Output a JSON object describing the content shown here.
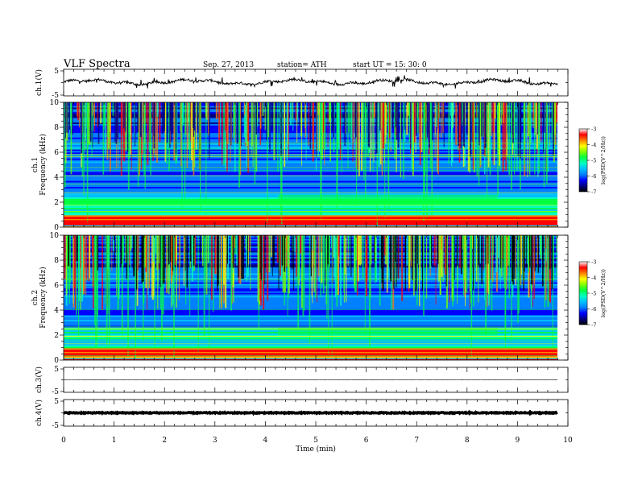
{
  "header": {
    "title": "VLF  Spectra",
    "date": "Sep. 27, 2013",
    "station": "station= ATH",
    "start": "start  UT  =   15: 30: 0"
  },
  "chart_data": [
    {
      "type": "line",
      "panel": "ch1-waveform",
      "ylabel": "ch.1(V)",
      "ylim": [
        -5,
        5
      ],
      "yticks": [
        "5",
        "-5"
      ],
      "xlim": [
        0,
        10
      ],
      "trace_color": "#000000",
      "mean_level": 0.2
    },
    {
      "type": "heatmap",
      "panel": "ch1-spectrogram",
      "ylabel": "ch.1\nFrequency (kHz)",
      "ylabel_lines": [
        "ch.1",
        "Frequency (kHz)"
      ],
      "ylim": [
        0,
        10
      ],
      "yticks": [
        "0",
        "2",
        "4",
        "6",
        "8",
        "10"
      ],
      "xlim": [
        0,
        10
      ],
      "colorbar": {
        "label": "log(PSD(V^2/Hz))",
        "range": [
          -7,
          -3
        ],
        "ticks": [
          "-3",
          "-4",
          "-5",
          "-6",
          "-7"
        ]
      }
    },
    {
      "type": "heatmap",
      "panel": "ch2-spectrogram",
      "ylabel": "ch.2\nFrequency (kHz)",
      "ylabel_lines": [
        "ch.2",
        "Frequency (kHz)"
      ],
      "ylim": [
        0,
        10
      ],
      "yticks": [
        "0",
        "2",
        "4",
        "6",
        "8",
        "10"
      ],
      "xlim": [
        0,
        10
      ],
      "colorbar": {
        "label": "log(PSD(V^2/Hz))",
        "range": [
          -7,
          -3
        ],
        "ticks": [
          "-3",
          "-4",
          "-5",
          "-6",
          "-7"
        ]
      }
    },
    {
      "type": "line",
      "panel": "ch3-waveform",
      "ylabel": "ch.3(V)",
      "ylim": [
        -5,
        5
      ],
      "yticks": [
        "5",
        "-5"
      ],
      "xlim": [
        0,
        10
      ],
      "mean_level": 0.0
    },
    {
      "type": "line",
      "panel": "ch4-waveform",
      "ylabel": "ch.4(V)",
      "ylim": [
        -5,
        5
      ],
      "yticks": [
        "5",
        "-5"
      ],
      "xlim": [
        0,
        10
      ],
      "xlabel": "Time  (min)",
      "xticks": [
        "0",
        "1",
        "2",
        "3",
        "4",
        "5",
        "6",
        "7",
        "8",
        "9",
        "10"
      ],
      "mean_level": 0.0
    }
  ],
  "colors": {
    "background": "#ffffff",
    "axis": "#000000",
    "colormap": [
      "#000000",
      "#000080",
      "#0000ff",
      "#0080ff",
      "#00c0ff",
      "#00ffc0",
      "#00ff40",
      "#80ff00",
      "#ffff00",
      "#ff8000",
      "#ff0000",
      "#ffffff"
    ]
  }
}
